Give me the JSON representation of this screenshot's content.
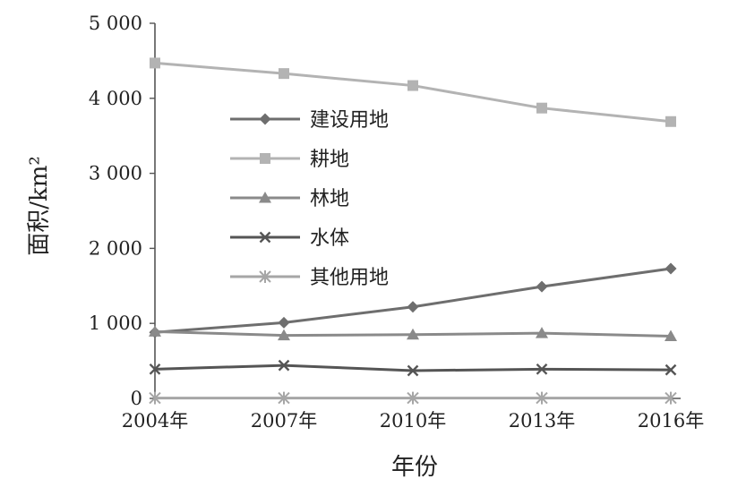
{
  "chart_data": {
    "type": "line",
    "title": "",
    "xlabel": "年份",
    "ylabel": "面积/km²",
    "x": [
      "2004年",
      "2007年",
      "2010年",
      "2013年",
      "2016年"
    ],
    "ylim": [
      0,
      5000
    ],
    "yticks": [
      0,
      1000,
      2000,
      3000,
      4000,
      5000
    ],
    "ytick_labels": [
      "0",
      "1 000",
      "2 000",
      "3 000",
      "4 000",
      "5 000"
    ],
    "grid": false,
    "legend_position": "upper-left inside",
    "series": [
      {
        "name": "建设用地",
        "marker": "diamond",
        "color": "#6e6e6e",
        "values": [
          880,
          1010,
          1220,
          1490,
          1730
        ]
      },
      {
        "name": "耕地",
        "marker": "square",
        "color": "#b3b3b3",
        "values": [
          4470,
          4330,
          4170,
          3870,
          3690
        ]
      },
      {
        "name": "林地",
        "marker": "triangle",
        "color": "#8a8a8a",
        "values": [
          890,
          840,
          850,
          870,
          830
        ]
      },
      {
        "name": "水体",
        "marker": "x",
        "color": "#555555",
        "values": [
          390,
          440,
          370,
          390,
          380
        ]
      },
      {
        "name": "其他用地",
        "marker": "asterisk",
        "color": "#a6a6a6",
        "values": [
          5,
          5,
          5,
          5,
          5
        ]
      }
    ]
  }
}
